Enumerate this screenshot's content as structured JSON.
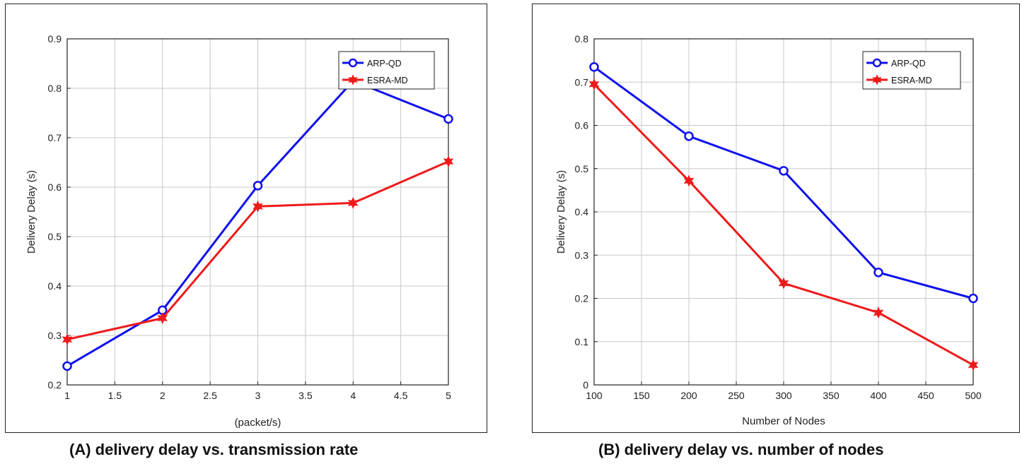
{
  "captions": {
    "a": "(A) delivery delay vs. transmission rate",
    "b": "(B) delivery delay vs. number of nodes"
  },
  "colors": {
    "arp": "#1010ee",
    "esra": "#ee1a1a",
    "grid": "#c8c8c8",
    "axis": "#222222"
  },
  "chart_data": [
    {
      "type": "line",
      "title": "",
      "xlabel": "(packet/s)",
      "ylabel": "Delivery Delay (s)",
      "xlim": [
        1,
        5
      ],
      "ylim": [
        0.2,
        0.9
      ],
      "xticks": [
        1,
        1.5,
        2,
        2.5,
        3,
        3.5,
        4,
        4.5,
        5
      ],
      "yticks": [
        0.2,
        0.3,
        0.4,
        0.5,
        0.6,
        0.7,
        0.8,
        0.9
      ],
      "grid": true,
      "legend_position": "top-right",
      "x": [
        1,
        2,
        3,
        4,
        5
      ],
      "series": [
        {
          "name": "ARP-QD",
          "marker": "circle",
          "values": [
            0.238,
            0.351,
            0.603,
            0.815,
            0.738
          ]
        },
        {
          "name": "ESRA-MD",
          "marker": "star",
          "values": [
            0.292,
            0.335,
            0.561,
            0.568,
            0.652
          ]
        }
      ]
    },
    {
      "type": "line",
      "title": "",
      "xlabel": "Number of Nodes",
      "ylabel": "Delivery Delay (s)",
      "xlim": [
        100,
        500
      ],
      "ylim": [
        0,
        0.8
      ],
      "xticks": [
        100,
        150,
        200,
        250,
        300,
        350,
        400,
        450,
        500
      ],
      "yticks": [
        0,
        0.1,
        0.2,
        0.3,
        0.4,
        0.5,
        0.6,
        0.7,
        0.8
      ],
      "grid": true,
      "legend_position": "top-right",
      "x": [
        100,
        200,
        300,
        400,
        500
      ],
      "series": [
        {
          "name": "ARP-QD",
          "marker": "circle",
          "values": [
            0.735,
            0.575,
            0.495,
            0.26,
            0.2
          ]
        },
        {
          "name": "ESRA-MD",
          "marker": "star",
          "values": [
            0.695,
            0.472,
            0.235,
            0.167,
            0.046
          ]
        }
      ]
    }
  ]
}
